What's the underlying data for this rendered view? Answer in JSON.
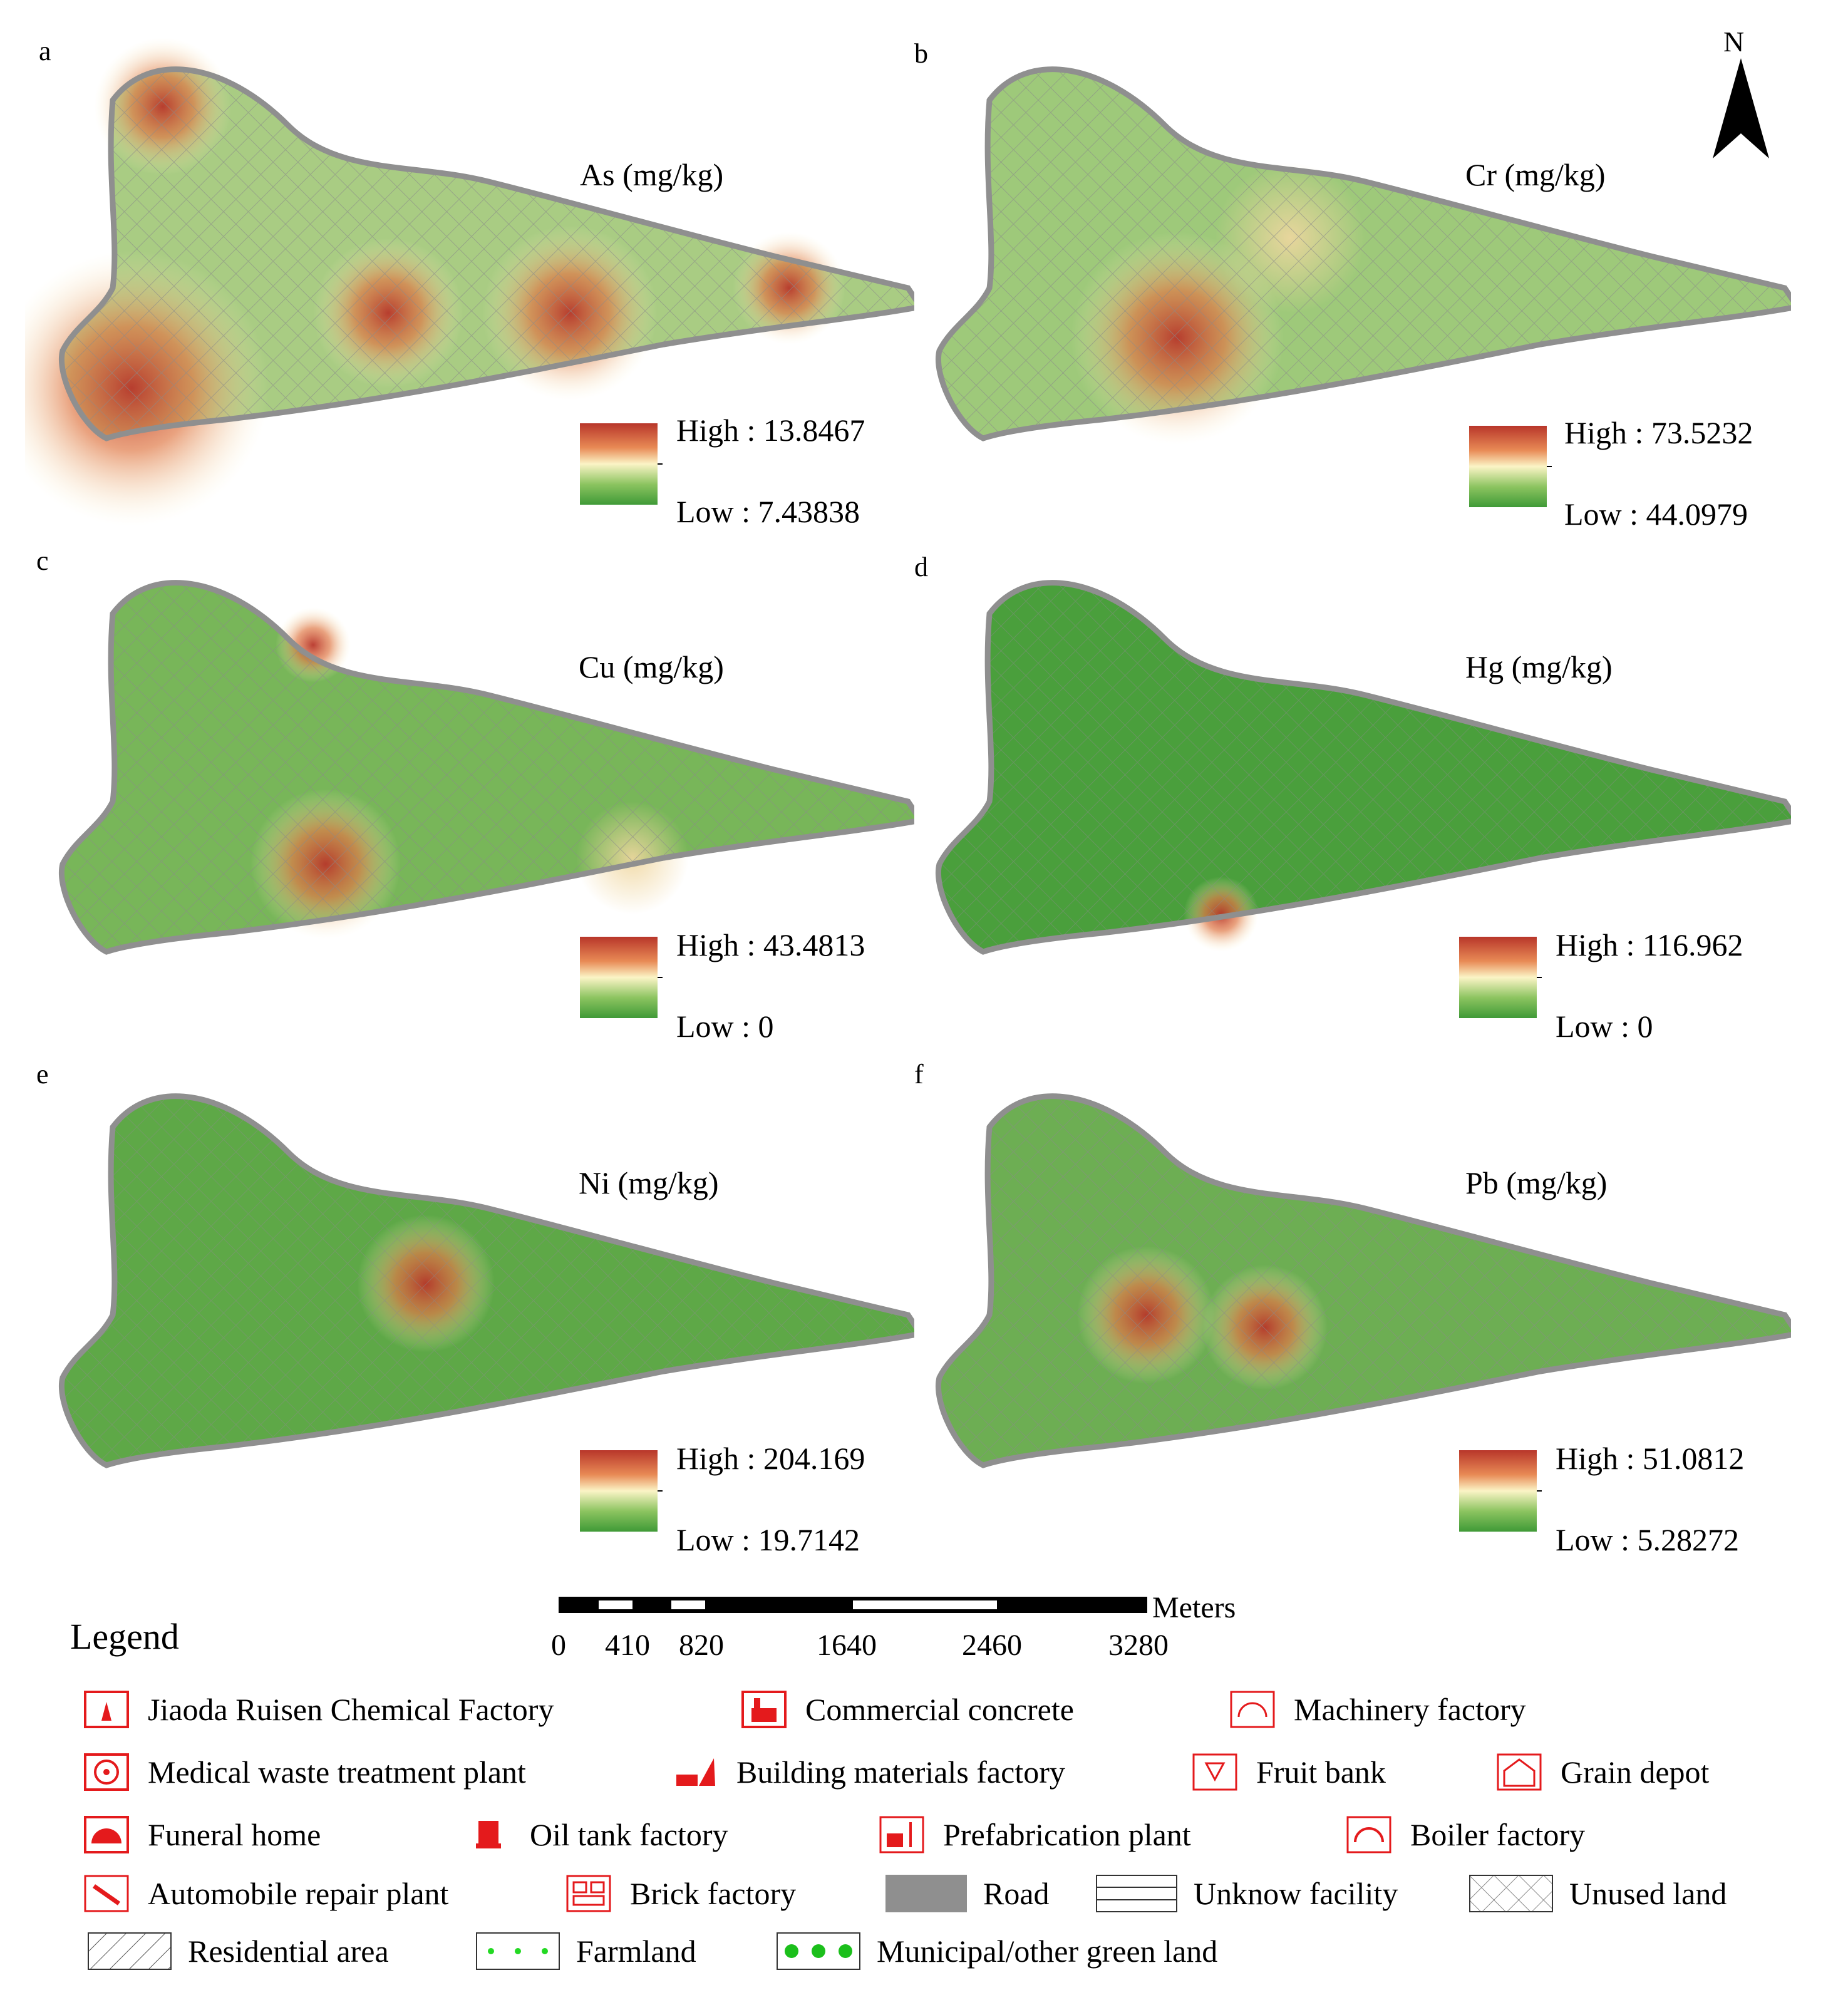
{
  "panels": [
    {
      "letter": "a",
      "element": "As (mg/kg)",
      "high_label": "High : 13.8467",
      "low_label": "Low : 7.43838"
    },
    {
      "letter": "b",
      "element": "Cr (mg/kg)",
      "high_label": "High : 73.5232",
      "low_label": "Low : 44.0979"
    },
    {
      "letter": "c",
      "element": "Cu (mg/kg)",
      "high_label": "High : 43.4813",
      "low_label": "Low : 0"
    },
    {
      "letter": "d",
      "element": "Hg (mg/kg)",
      "high_label": "High : 116.962",
      "low_label": "Low : 0"
    },
    {
      "letter": "e",
      "element": "Ni (mg/kg)",
      "high_label": "High : 204.169",
      "low_label": "Low : 19.7142"
    },
    {
      "letter": "f",
      "element": "Pb (mg/kg)",
      "high_label": "High : 51.0812",
      "low_label": "Low : 5.28272"
    }
  ],
  "north_arrow": {
    "label": "N",
    "icon": "north-arrow-icon"
  },
  "scale_bar": {
    "unit": "Meters",
    "ticks": [
      "0",
      "410",
      "820",
      "1640",
      "2460",
      "3280"
    ]
  },
  "legend": {
    "title": "Legend",
    "items": [
      {
        "label": "Jiaoda Ruisen Chemical Factory",
        "icon": "chemical-factory-icon"
      },
      {
        "label": "Commercial concrete",
        "icon": "concrete-plant-icon"
      },
      {
        "label": "Machinery factory",
        "icon": "machinery-factory-icon"
      },
      {
        "label": "Medical waste treatment plant",
        "icon": "medical-waste-icon"
      },
      {
        "label": "Building materials factory",
        "icon": "building-materials-icon"
      },
      {
        "label": "Fruit bank",
        "icon": "fruit-bank-icon"
      },
      {
        "label": "Grain depot",
        "icon": "grain-depot-icon"
      },
      {
        "label": "Funeral home",
        "icon": "funeral-home-icon"
      },
      {
        "label": "Oil tank factory",
        "icon": "oil-tank-icon"
      },
      {
        "label": "Prefabrication plant",
        "icon": "prefabrication-plant-icon"
      },
      {
        "label": "Boiler factory",
        "icon": "boiler-factory-icon"
      },
      {
        "label": "Automobile repair plant",
        "icon": "wrench-icon"
      },
      {
        "label": "Brick factory",
        "icon": "brick-factory-icon"
      },
      {
        "label": "Road",
        "icon": "road-swatch-icon"
      },
      {
        "label": "Unknow facility",
        "icon": "unknown-facility-swatch-icon"
      },
      {
        "label": "Unused land",
        "icon": "unused-land-swatch-icon"
      },
      {
        "label": "Residential area",
        "icon": "residential-swatch-icon"
      },
      {
        "label": "Farmland",
        "icon": "farmland-swatch-icon"
      },
      {
        "label": "Municipal/other green land",
        "icon": "green-land-swatch-icon"
      }
    ]
  },
  "colors": {
    "high": "#b8362a",
    "mid": "#fbf4c6",
    "low": "#3f9a37",
    "icon_red": "#e41a1c",
    "road": "#8f8f8f"
  }
}
